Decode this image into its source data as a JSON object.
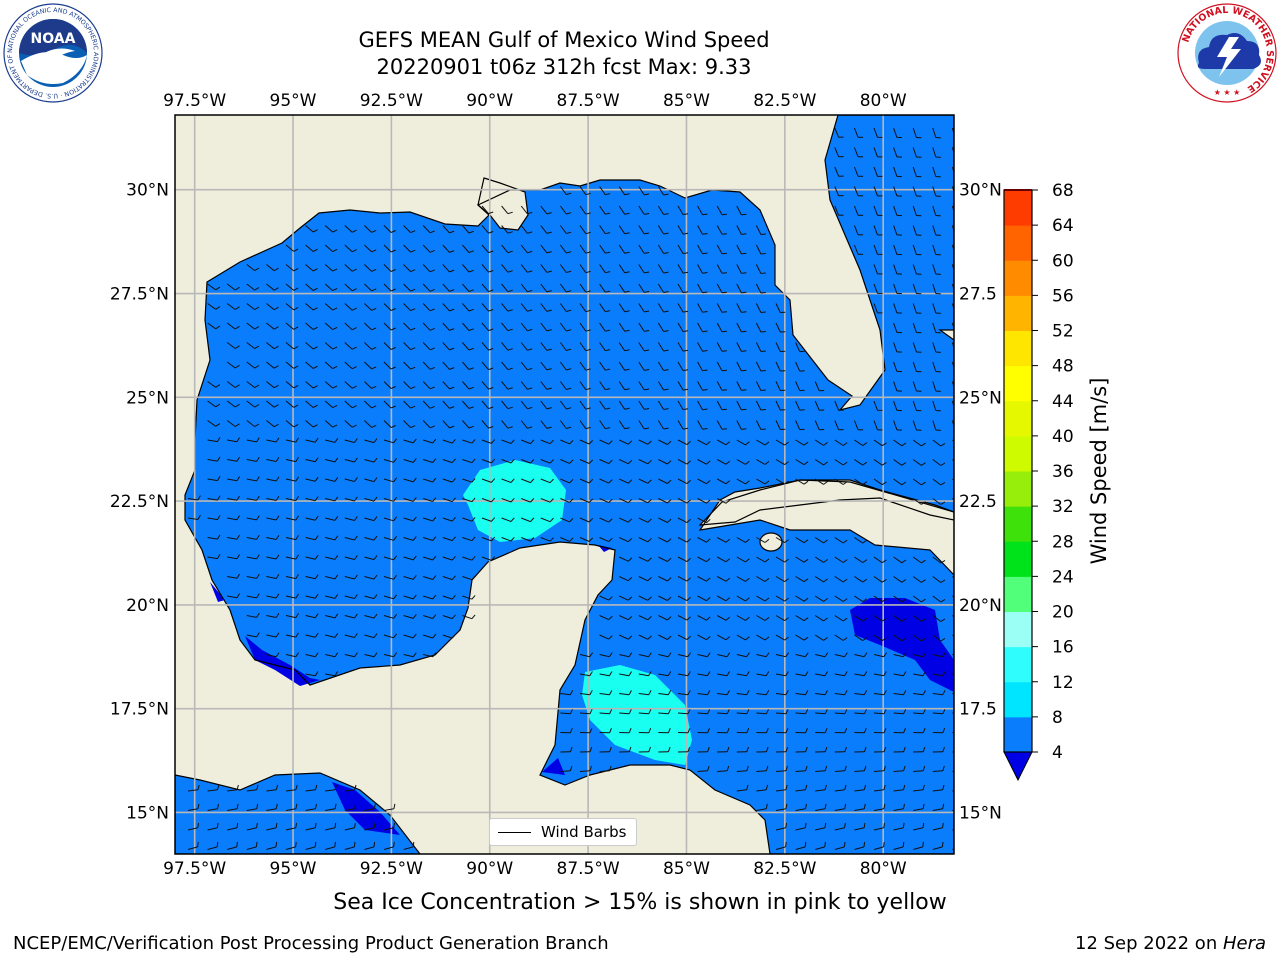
{
  "header": {
    "title_line1": "GEFS MEAN Gulf of Mexico Wind Speed",
    "title_line2": "20220901 t06z 312h fcst   Max: 9.33"
  },
  "logos": {
    "noaa_text": "NOAA",
    "noaa_ring_text": "NATIONAL OCEANIC AND ATMOSPHERIC ADMINISTRATION · U.S. DEPARTMENT OF COMMERCE",
    "nws_ring_text": "NATIONAL WEATHER SERVICE"
  },
  "map": {
    "lon_ticks": [
      "97.5°W",
      "95°W",
      "92.5°W",
      "90°W",
      "87.5°W",
      "85°W",
      "82.5°W",
      "80°W"
    ],
    "lat_ticks": [
      "30°N",
      "27.5°N",
      "25°N",
      "22.5°N",
      "20°N",
      "17.5°N",
      "15°N"
    ],
    "lat_ticks_right": [
      "30°N",
      "27.5",
      "25°N",
      "22.5",
      "20°N",
      "17.5",
      "15°N"
    ],
    "lon_range": [
      -98,
      -78.2
    ],
    "lat_range": [
      14,
      31.8
    ],
    "max_wind_speed_ms": 9.33,
    "colors": {
      "land": "#efeedc",
      "ocean_4_8": "#0a7dfd",
      "ocean_below_4": "#0000e5",
      "ocean_8_12": "#19fff0"
    }
  },
  "colorbar": {
    "label": "Wind Speed [m/s]",
    "ticks": [
      "4",
      "8",
      "12",
      "16",
      "20",
      "24",
      "28",
      "32",
      "36",
      "40",
      "44",
      "48",
      "52",
      "56",
      "60",
      "64",
      "68"
    ],
    "colors": [
      "#0a7dfd",
      "#00e5ff",
      "#2ffdfd",
      "#9cfff6",
      "#52ff7a",
      "#00e31a",
      "#3ee10a",
      "#97ee0a",
      "#cffb00",
      "#e6f800",
      "#ffff00",
      "#ffe600",
      "#ffb400",
      "#ff8c00",
      "#ff6400",
      "#ff3c00"
    ],
    "under_color": "#0000e5",
    "over_color": "#ff0000"
  },
  "legend": {
    "label": "Wind Barbs"
  },
  "caption": "Sea Ice Concentration > 15% is shown in pink to yellow",
  "footer": {
    "left": "NCEP/EMC/Verification Post Processing Product Generation Branch",
    "right_date": "12 Sep 2022 on ",
    "right_host": "Hera"
  }
}
